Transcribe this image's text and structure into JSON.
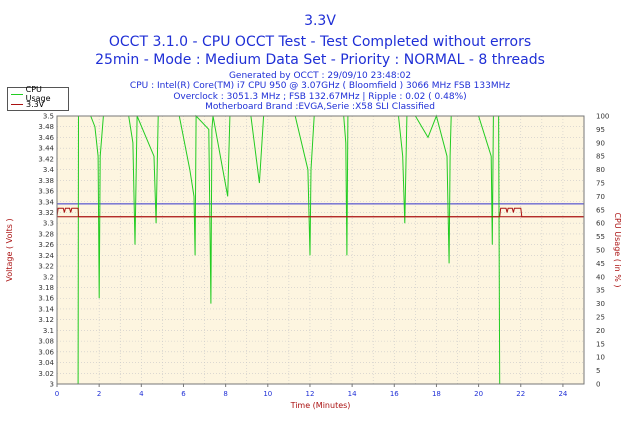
{
  "header": {
    "title": "3.3V",
    "subtitle1": "OCCT 3.1.0 - CPU OCCT Test - Test Completed without errors",
    "subtitle2": "25min - Mode : Medium Data Set - Priority : NORMAL - 8 threads",
    "info1": "Generated by OCCT : 29/09/10 23:48:02",
    "info2": "CPU : Intel(R) Core(TM) i7 CPU 950 @ 3.07GHz ( Bloomfield ) 3066 MHz FSB 133MHz",
    "info3": "Overclock : 3051.3 MHz ; FSB 132.67MHz | Ripple : 0.02 ( 0.48%)",
    "info4": "Motherboard Brand :EVGA,Serie :X58 SLI Classified"
  },
  "legend": {
    "items": [
      {
        "label": "CPU Usage",
        "color": "#22cc22"
      },
      {
        "label": "3.3V",
        "color": "#aa1111"
      }
    ]
  },
  "chart_data": {
    "type": "line",
    "xlabel": "Time (Minutes)",
    "ylabel": "Voltage ( Volts )",
    "y2label": "CPU Usage ( in % )",
    "xlim": [
      0,
      25
    ],
    "ylim": [
      3.0,
      3.5
    ],
    "y2lim": [
      0,
      100
    ],
    "x_ticks": [
      "0",
      "2",
      "4",
      "6",
      "8",
      "10",
      "12",
      "14",
      "16",
      "18",
      "20",
      "22",
      "24"
    ],
    "y_ticks": [
      "3",
      "3.02",
      "3.04",
      "3.06",
      "3.08",
      "3.1",
      "3.12",
      "3.14",
      "3.16",
      "3.18",
      "3.2",
      "3.22",
      "3.24",
      "3.26",
      "3.28",
      "3.3",
      "3.32",
      "3.34",
      "3.36",
      "3.38",
      "3.4",
      "3.42",
      "3.44",
      "3.46",
      "3.48",
      "3.5"
    ],
    "y2_ticks": [
      "0",
      "5",
      "10",
      "15",
      "20",
      "25",
      "30",
      "35",
      "40",
      "45",
      "50",
      "55",
      "60",
      "65",
      "70",
      "75",
      "80",
      "85",
      "90",
      "95",
      "100"
    ],
    "grid": true,
    "background": "#fdf5e0",
    "reference_lines": [
      {
        "value": 3.336,
        "color": "#3333cc"
      },
      {
        "value": 3.312,
        "color": "#aa1111"
      }
    ],
    "series": [
      {
        "name": "CPU Usage",
        "axis": "right",
        "color": "#22cc22",
        "x": [
          0,
          1.0,
          1.02,
          1.6,
          1.8,
          1.95,
          2.0,
          2.05,
          2.2,
          3.4,
          3.6,
          3.7,
          3.8,
          4.6,
          4.7,
          4.8,
          5.8,
          6.3,
          6.5,
          6.55,
          6.6,
          7.2,
          7.3,
          7.35,
          7.4,
          8.1,
          8.2,
          9.2,
          9.6,
          9.8,
          11.3,
          11.9,
          12.0,
          12.05,
          12.2,
          13.6,
          13.7,
          13.75,
          13.8,
          14.4,
          16.2,
          16.4,
          16.5,
          16.6,
          17.0,
          17.6,
          18.0,
          18.5,
          18.6,
          18.65,
          18.7,
          20.0,
          20.6,
          20.65,
          20.7,
          20.95,
          21.0,
          21.05,
          25
        ],
        "y": [
          0,
          0,
          100,
          100,
          96,
          85,
          32,
          85,
          100,
          100,
          90,
          52,
          100,
          85,
          60,
          100,
          100,
          80,
          70,
          48,
          100,
          95,
          30,
          95,
          100,
          70,
          100,
          100,
          75,
          100,
          100,
          80,
          48,
          80,
          100,
          100,
          90,
          48,
          100,
          100,
          100,
          85,
          60,
          100,
          100,
          92,
          100,
          85,
          45,
          85,
          100,
          100,
          85,
          52,
          100,
          100,
          0,
          0,
          0
        ]
      },
      {
        "name": "3.3V",
        "axis": "left",
        "color": "#aa1111",
        "x": [
          0,
          0.05,
          0.1,
          0.3,
          0.35,
          0.4,
          0.6,
          0.65,
          0.7,
          0.9,
          1.0,
          1.02,
          21.0,
          21.05,
          21.1,
          21.3,
          21.35,
          21.4,
          21.6,
          21.65,
          21.7,
          21.9,
          22.0,
          22.05,
          22.1,
          25
        ],
        "y": [
          3.312,
          3.328,
          3.328,
          3.328,
          3.32,
          3.328,
          3.328,
          3.32,
          3.328,
          3.328,
          3.328,
          3.312,
          3.312,
          3.328,
          3.328,
          3.328,
          3.32,
          3.328,
          3.328,
          3.32,
          3.328,
          3.328,
          3.328,
          3.312,
          3.312,
          3.312
        ]
      }
    ]
  }
}
